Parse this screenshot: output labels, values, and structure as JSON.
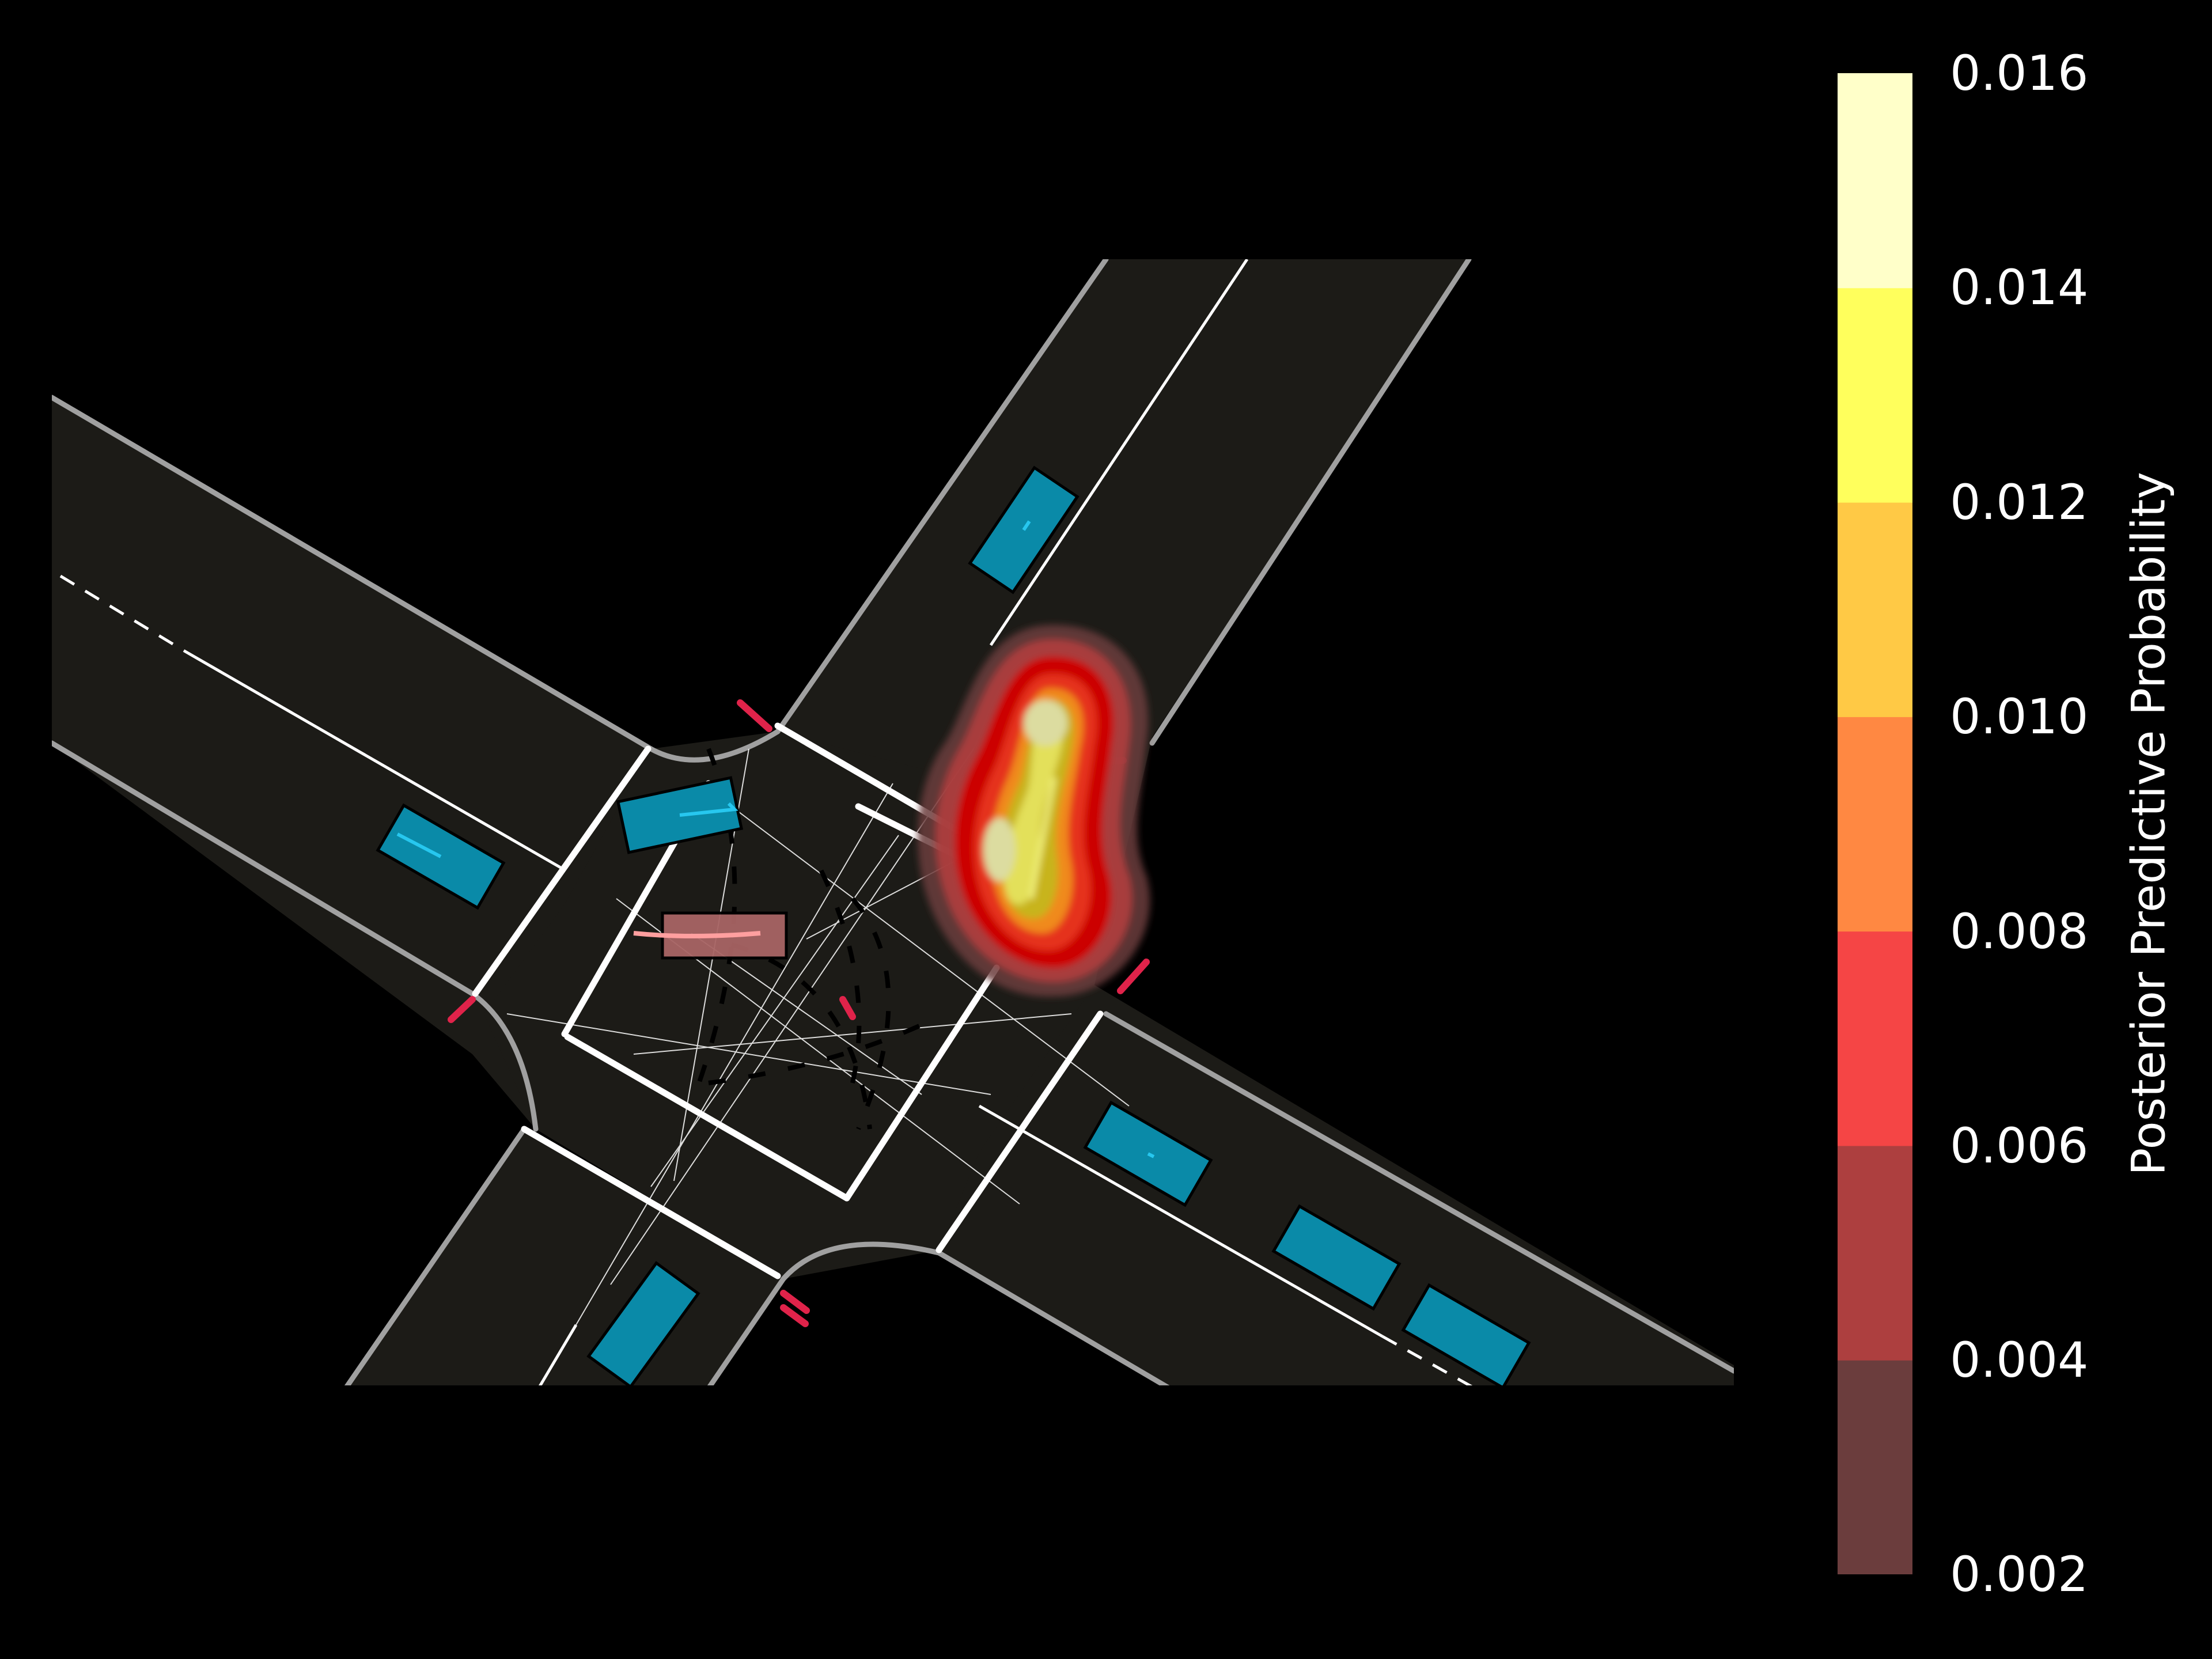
{
  "colorbar": {
    "label": "Posterior Predictive Probability",
    "levels": [
      {
        "value": "0.002",
        "color": "#6b3d3d"
      },
      {
        "value": "0.004",
        "color": "#ad3f3f"
      },
      {
        "value": "0.006",
        "color": "#f54545"
      },
      {
        "value": "0.008",
        "color": "#ff8842"
      },
      {
        "value": "0.010",
        "color": "#ffc945"
      },
      {
        "value": "0.012",
        "color": "#ffff5c"
      },
      {
        "value": "0.014",
        "color": "#ffffc9"
      },
      {
        "value": "0.016",
        "color": "#ffffc9"
      }
    ]
  },
  "scene": {
    "background": "#000000",
    "road_color": "#1c1b17",
    "vehicle_color": "#0a8aa8",
    "ego_color": "#a86464",
    "signal_color": "#e0234a"
  }
}
